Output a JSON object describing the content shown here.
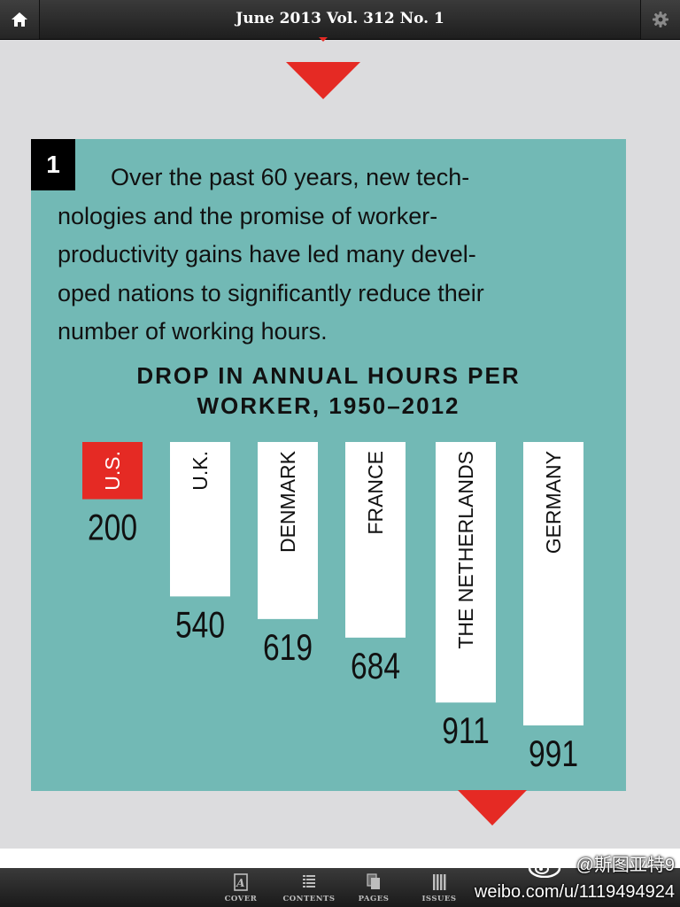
{
  "header": {
    "issue_title": "June 2013  Vol. 312 No. 1"
  },
  "card": {
    "number": "1",
    "intro_lines": [
      "Over the past 60 years, new tech-",
      "nologies and the promise of worker-",
      "productivity gains have led many devel-",
      "oped nations to significantly reduce their",
      "number of working hours."
    ]
  },
  "chart_data": {
    "type": "bar",
    "title_lines": [
      "DROP IN ANNUAL HOURS PER",
      "WORKER, 1950–2012"
    ],
    "categories": [
      "U.S.",
      "U.K.",
      "DENMARK",
      "FRANCE",
      "THE NETHERLANDS",
      "GERMANY"
    ],
    "values": [
      200,
      540,
      619,
      684,
      911,
      991
    ],
    "highlight": "U.S.",
    "colors": {
      "highlight": "#e52a24",
      "bar": "#ffffff",
      "background": "#72b9b5"
    },
    "ylim": [
      0,
      991
    ],
    "grid": false,
    "legend": "none"
  },
  "bottom_nav": {
    "items": [
      {
        "label": "COVER",
        "icon": "cover-icon"
      },
      {
        "label": "CONTENTS",
        "icon": "contents-icon"
      },
      {
        "label": "PAGES",
        "icon": "pages-icon"
      },
      {
        "label": "ISSUES",
        "icon": "issues-icon"
      }
    ]
  },
  "watermark": {
    "handle": "@斯图亚特9",
    "url": "weibo.com/u/1119494924"
  }
}
